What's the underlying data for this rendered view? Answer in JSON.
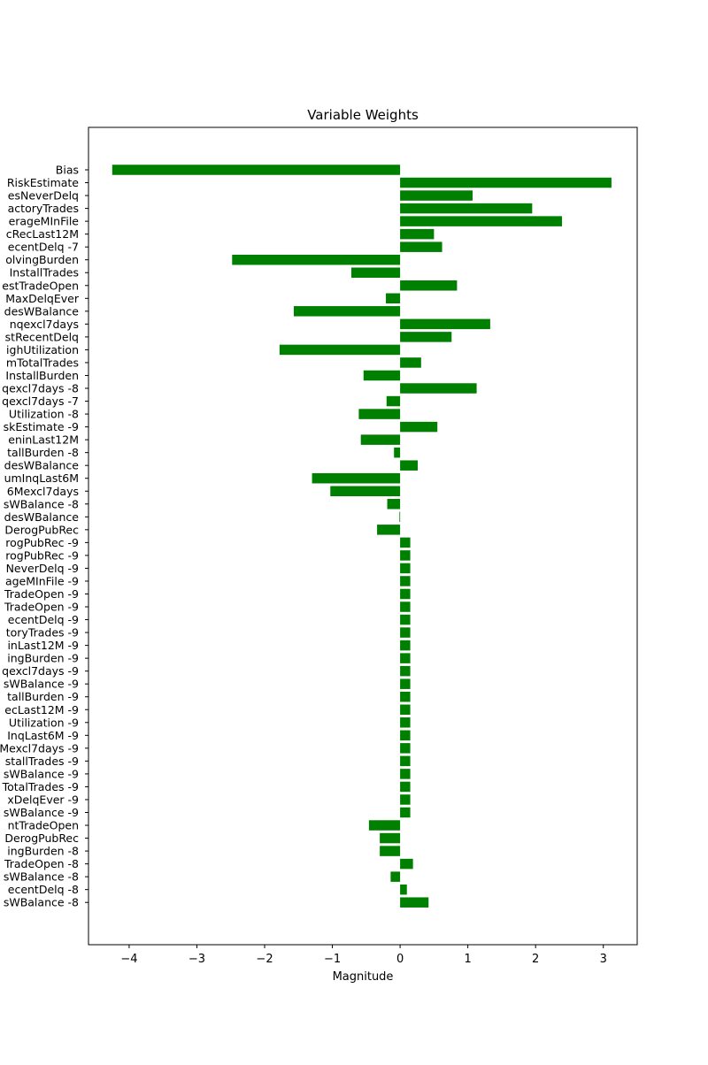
{
  "chart_data": {
    "type": "bar",
    "orientation": "horizontal",
    "title": "Variable Weights",
    "xlabel": "Magnitude",
    "ylabel": "",
    "xlim": [
      -4.6,
      3.5
    ],
    "xticks": [
      {
        "value": -4,
        "label": "−4"
      },
      {
        "value": -3,
        "label": "−3"
      },
      {
        "value": -2,
        "label": "−2"
      },
      {
        "value": -1,
        "label": "−1"
      },
      {
        "value": 0,
        "label": "0"
      },
      {
        "value": 1,
        "label": "1"
      },
      {
        "value": 2,
        "label": "2"
      },
      {
        "value": 3,
        "label": "3"
      }
    ],
    "grid": false,
    "bar_color": "#008000",
    "categories": [
      "Bias",
      "RiskEstimate",
      "esNeverDelq",
      "actoryTrades",
      "erageMInFile",
      "cRecLast12M",
      "ecentDelq -7",
      "olvingBurden",
      "InstallTrades",
      "estTradeOpen",
      "MaxDelqEver",
      "desWBalance",
      "nqexcl7days",
      "stRecentDelq",
      "ighUtilization",
      "mTotalTrades",
      "InstallBurden",
      "qexcl7days -8",
      "qexcl7days -7",
      "Utilization -8",
      "skEstimate -9",
      "eninLast12M",
      "tallBurden -8",
      "desWBalance",
      "umInqLast6M",
      "6Mexcl7days",
      "sWBalance -8",
      "desWBalance",
      "DerogPubRec",
      "rogPubRec -9",
      "rogPubRec -9",
      "NeverDelq -9",
      "ageMInFile -9",
      "TradeOpen -9",
      "TradeOpen -9",
      "ecentDelq -9",
      "toryTrades -9",
      "inLast12M -9",
      "ingBurden -9",
      "qexcl7days -9",
      "sWBalance -9",
      "tallBurden -9",
      "ecLast12M -9",
      "Utilization -9",
      "InqLast6M -9",
      "Mexcl7days -9",
      "stallTrades -9",
      "sWBalance -9",
      "TotalTrades -9",
      "xDelqEver -9",
      "sWBalance -9",
      "ntTradeOpen",
      "DerogPubRec",
      "ingBurden -8",
      "TradeOpen -8",
      "sWBalance -8",
      "ecentDelq -8",
      "sWBalance -8"
    ],
    "values": [
      -4.25,
      3.12,
      1.07,
      1.95,
      2.39,
      0.5,
      0.62,
      -2.48,
      -0.72,
      0.84,
      -0.21,
      -1.57,
      1.33,
      0.76,
      -1.78,
      0.31,
      -0.54,
      1.13,
      -0.2,
      -0.61,
      0.55,
      -0.58,
      -0.09,
      0.26,
      -1.3,
      -1.03,
      -0.19,
      -0.01,
      -0.34,
      0.15,
      0.15,
      0.15,
      0.15,
      0.15,
      0.15,
      0.15,
      0.15,
      0.15,
      0.15,
      0.15,
      0.15,
      0.15,
      0.15,
      0.15,
      0.15,
      0.15,
      0.15,
      0.15,
      0.15,
      0.15,
      0.15,
      -0.46,
      -0.3,
      -0.3,
      0.19,
      -0.14,
      0.1,
      0.42
    ]
  }
}
